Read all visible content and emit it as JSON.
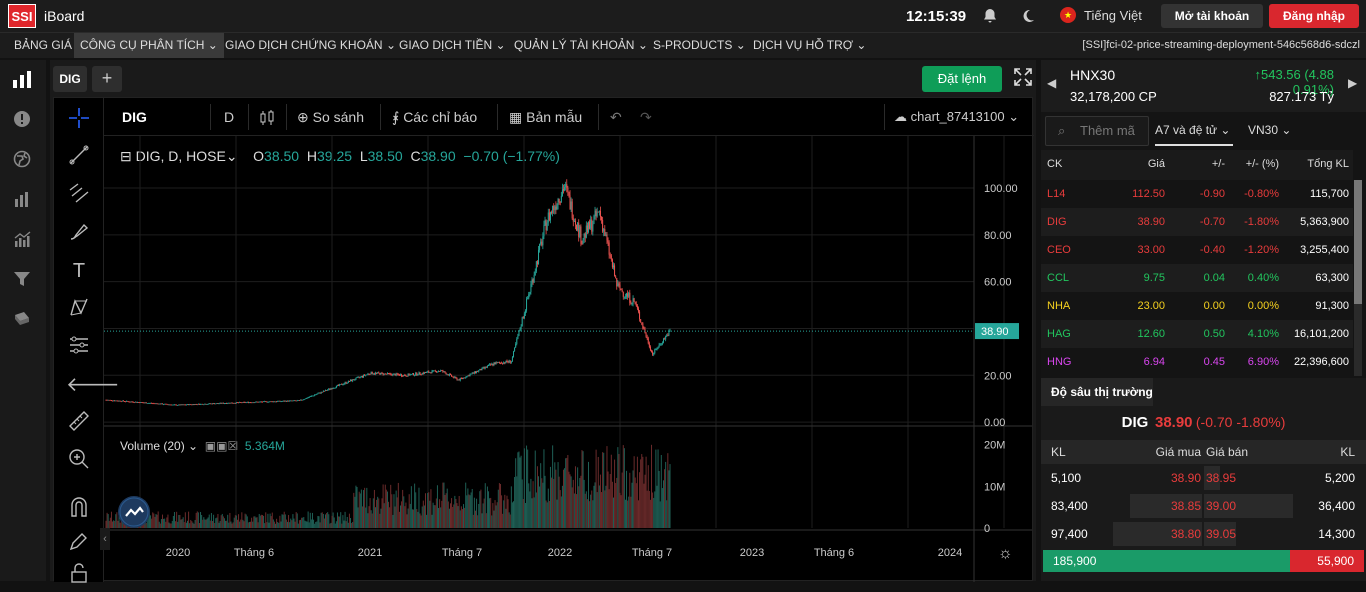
{
  "app": {
    "logo": "SSI",
    "name": "iBoard",
    "clock": "12:15:39",
    "language": "Tiếng Việt",
    "open_account": "Mở tài khoản",
    "login": "Đăng nhập"
  },
  "menu": {
    "items": [
      "BẢNG GIÁ",
      "CÔNG CỤ PHÂN TÍCH",
      "GIAO DỊCH CHỨNG KHOÁN",
      "GIAO DỊCH TIỀN",
      "QUẢN LÝ TÀI KHOẢN",
      "S-PRODUCTS",
      "DỊCH VỤ HỖ TRỢ"
    ],
    "active": "CÔNG CỤ PHÂN TÍCH",
    "deployment": "[SSI]fci-02-price-streaming-deployment-546c568d6-sdczl"
  },
  "chart_tab": {
    "symbol": "DIG",
    "add": "+",
    "order_button": "Đặt lệnh"
  },
  "toolbar": {
    "symbol": "DIG",
    "interval": "D",
    "compare": "So sánh",
    "indicators": "Các chỉ báo",
    "templates": "Bản mẫu",
    "chart_name": "chart_87413100"
  },
  "legend": {
    "title": "DIG, D, HOSE",
    "o_label": "O",
    "o": "38.50",
    "h_label": "H",
    "h": "39.25",
    "l_label": "L",
    "l": "38.50",
    "c_label": "C",
    "c": "38.90",
    "change": "−0.70 (−1.77%)"
  },
  "volume_legend": {
    "label": "Volume (20)",
    "value": "5.364M"
  },
  "chart_data": {
    "type": "candlestick",
    "symbol": "DIG",
    "interval": "D",
    "exchange": "HOSE",
    "last_price": 38.9,
    "price_axis": {
      "ticks": [
        0,
        20,
        40,
        60,
        80,
        100
      ],
      "labels": [
        "0.00",
        "20.00",
        "",
        "60.00",
        "80.00",
        "100.00"
      ],
      "range": [
        -0.8,
        106
      ]
    },
    "volume_axis": {
      "ticks": [
        0,
        10000000,
        20000000
      ],
      "labels": [
        "0",
        "10M",
        "20M"
      ]
    },
    "time_axis": {
      "labels": [
        "2020",
        "Tháng 6",
        "2021",
        "Tháng 7",
        "2022",
        "Tháng 7",
        "2023",
        "Tháng 6",
        "2024"
      ]
    },
    "close_path": [
      {
        "t": "2019-11",
        "v": 9.5
      },
      {
        "t": "2020-03",
        "v": 7.3
      },
      {
        "t": "2020-06",
        "v": 8.2
      },
      {
        "t": "2020-10",
        "v": 9.2
      },
      {
        "t": "2021-01",
        "v": 18
      },
      {
        "t": "2021-02",
        "v": 21
      },
      {
        "t": "2021-04",
        "v": 20
      },
      {
        "t": "2021-06",
        "v": 22
      },
      {
        "t": "2021-07",
        "v": 18
      },
      {
        "t": "2021-09",
        "v": 25
      },
      {
        "t": "2021-10",
        "v": 26
      },
      {
        "t": "2021-11",
        "v": 55
      },
      {
        "t": "2021-12",
        "v": 86
      },
      {
        "t": "2022-01",
        "v": 101
      },
      {
        "t": "2022-02",
        "v": 78
      },
      {
        "t": "2022-03",
        "v": 90
      },
      {
        "t": "2022-04",
        "v": 58
      },
      {
        "t": "2022-05",
        "v": 51
      },
      {
        "t": "2022-06",
        "v": 29
      },
      {
        "t": "2022-07",
        "v": 38.9
      }
    ]
  },
  "index": {
    "name": "HNX30",
    "change": "543.56 (4.88 0.91%)",
    "volume": "32,178,200 CP",
    "value": "827.173 Tỷ"
  },
  "watchlist": {
    "search_placeholder": "Thêm mã",
    "list": "A7 và đệ tử",
    "group": "VN30",
    "headers": [
      "CK",
      "Giá",
      "+/-",
      "+/- (%)",
      "Tổng KL"
    ],
    "rows": [
      {
        "ck": "L14",
        "price": "112.50",
        "chg": "-0.90",
        "pct": "-0.80%",
        "vol": "115,700",
        "color": "#e83c3c"
      },
      {
        "ck": "DIG",
        "price": "38.90",
        "chg": "-0.70",
        "pct": "-1.80%",
        "vol": "5,363,900",
        "color": "#e83c3c"
      },
      {
        "ck": "CEO",
        "price": "33.00",
        "chg": "-0.40",
        "pct": "-1.20%",
        "vol": "3,255,400",
        "color": "#e83c3c"
      },
      {
        "ck": "CCL",
        "price": "9.75",
        "chg": "0.04",
        "pct": "0.40%",
        "vol": "63,300",
        "color": "#22c55e"
      },
      {
        "ck": "NHA",
        "price": "23.00",
        "chg": "0.00",
        "pct": "0.00%",
        "vol": "91,300",
        "color": "#f5d11f"
      },
      {
        "ck": "HAG",
        "price": "12.60",
        "chg": "0.50",
        "pct": "4.10%",
        "vol": "16,101,200",
        "color": "#22c55e"
      },
      {
        "ck": "HNG",
        "price": "6.94",
        "chg": "0.45",
        "pct": "6.90%",
        "vol": "22,396,600",
        "color": "#d946ef"
      }
    ]
  },
  "depth": {
    "tab": "Độ sâu thị trường",
    "symbol": "DIG",
    "price": "38.90",
    "change": "(-0.70 -1.80%)",
    "headers": {
      "kl_buy": "KL",
      "bid": "Giá mua",
      "ask": "Giá bán",
      "kl_sell": "KL"
    },
    "rows": [
      {
        "kl_buy": "5,100",
        "bid": "38.90",
        "ask": "38.95",
        "kl_sell": "5,200",
        "buy_share": 0.0,
        "sell_share": 0.1
      },
      {
        "kl_buy": "83,400",
        "bid": "38.85",
        "ask": "39.00",
        "kl_sell": "36,400",
        "buy_share": 0.45,
        "sell_share": 0.55
      },
      {
        "kl_buy": "97,400",
        "bid": "38.80",
        "ask": "39.05",
        "kl_sell": "14,300",
        "buy_share": 0.55,
        "sell_share": 0.2
      }
    ],
    "total_buy": "185,900",
    "total_sell": "55,900",
    "buy_ratio": 0.77
  },
  "colors": {
    "up": "#26a69a",
    "down": "#ef5350",
    "accent_red": "#d9272e",
    "green": "#0f9d58"
  }
}
